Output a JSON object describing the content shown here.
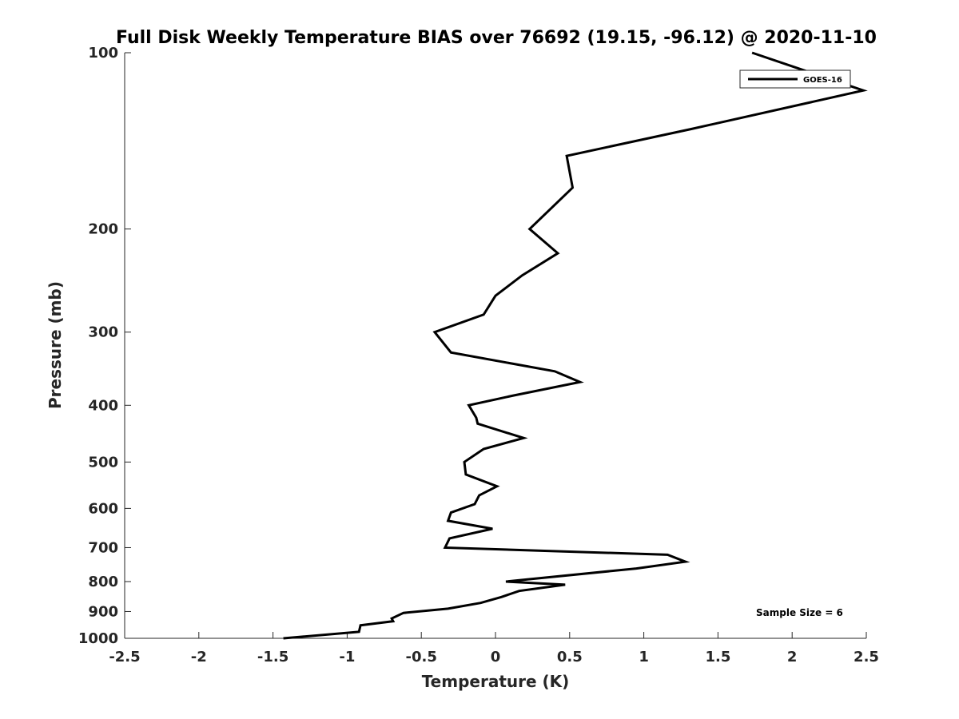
{
  "chart_data": {
    "type": "line",
    "title": "Full Disk Weekly Temperature BIAS over 76692 (19.15, -96.12) @ 2020-11-10",
    "xlabel": "Temperature (K)",
    "ylabel": "Pressure (mb)",
    "xlim": [
      -2.5,
      2.5
    ],
    "ylim": [
      1000,
      100
    ],
    "yscale": "log",
    "y_reversed": true,
    "grid": false,
    "xticks": [
      -2.5,
      -2,
      -1.5,
      -1,
      -0.5,
      0,
      0.5,
      1,
      1.5,
      2,
      2.5
    ],
    "xtick_labels": [
      "-2.5",
      "-2",
      "-1.5",
      "-1",
      "-0.5",
      "0",
      "0.5",
      "1",
      "1.5",
      "2",
      "2.5"
    ],
    "yticks": [
      100,
      200,
      300,
      400,
      500,
      600,
      700,
      800,
      900,
      1000
    ],
    "ytick_labels": [
      "100",
      "200",
      "300",
      "400",
      "500",
      "600",
      "700",
      "800",
      "900",
      "1000"
    ],
    "legend_position": "top-right",
    "annotation": "Sample Size = 6",
    "series": [
      {
        "name": "GOES-16",
        "color": "#000000",
        "points": [
          [
            1.73,
            100
          ],
          [
            2.48,
            116
          ],
          [
            1.32,
            135
          ],
          [
            0.48,
            150
          ],
          [
            0.52,
            170
          ],
          [
            0.23,
            200
          ],
          [
            0.42,
            220
          ],
          [
            0.18,
            240
          ],
          [
            0.0,
            260
          ],
          [
            -0.08,
            280
          ],
          [
            -0.41,
            300
          ],
          [
            -0.3,
            325
          ],
          [
            0.4,
            350
          ],
          [
            0.57,
            365
          ],
          [
            0.12,
            385
          ],
          [
            -0.18,
            400
          ],
          [
            -0.13,
            420
          ],
          [
            -0.12,
            430
          ],
          [
            0.19,
            455
          ],
          [
            -0.08,
            475
          ],
          [
            -0.21,
            500
          ],
          [
            -0.2,
            525
          ],
          [
            0.01,
            550
          ],
          [
            -0.11,
            570
          ],
          [
            -0.14,
            590
          ],
          [
            -0.3,
            610
          ],
          [
            -0.32,
            630
          ],
          [
            -0.02,
            650
          ],
          [
            -0.31,
            675
          ],
          [
            -0.34,
            700
          ],
          [
            1.16,
            720
          ],
          [
            1.28,
            740
          ],
          [
            0.95,
            760
          ],
          [
            0.07,
            800
          ],
          [
            0.47,
            810
          ],
          [
            0.16,
            830
          ],
          [
            0.04,
            850
          ],
          [
            -0.1,
            870
          ],
          [
            -0.32,
            890
          ],
          [
            -0.62,
            905
          ],
          [
            -0.7,
            925
          ],
          [
            -0.69,
            935
          ],
          [
            -0.91,
            950
          ],
          [
            -0.92,
            975
          ],
          [
            -1.43,
            1000
          ]
        ]
      }
    ]
  }
}
